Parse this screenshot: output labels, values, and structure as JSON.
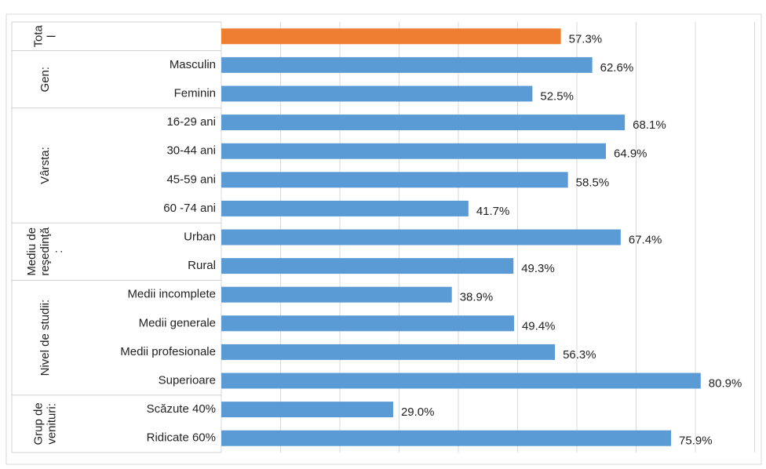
{
  "chart_data": {
    "type": "bar",
    "orientation": "horizontal",
    "xlim": [
      0,
      90
    ],
    "xticks": [
      0,
      10,
      20,
      30,
      40,
      50,
      60,
      70,
      80,
      90
    ],
    "grid": true,
    "groups": [
      {
        "label": [
          "Tota",
          "l"
        ],
        "color": "#ed7d31",
        "categories": [
          null
        ],
        "values": [
          57.3
        ],
        "value_labels": [
          "57.3%"
        ]
      },
      {
        "label": [
          "Gen:"
        ],
        "color": "#5b9bd5",
        "categories": [
          "Masculin",
          "Feminin"
        ],
        "values": [
          62.6,
          52.5
        ],
        "value_labels": [
          "62.6%",
          "52.5%"
        ]
      },
      {
        "label": [
          "Vârsta:"
        ],
        "color": "#5b9bd5",
        "categories": [
          "16-29 ani",
          "30-44 ani",
          "45-59 ani",
          "60 -74 ani"
        ],
        "values": [
          68.1,
          64.9,
          58.5,
          41.7
        ],
        "value_labels": [
          "68.1%",
          "64.9%",
          "58.5%",
          "41.7%"
        ]
      },
      {
        "label": [
          "Mediu de",
          "reşedinţă",
          ":"
        ],
        "color": "#5b9bd5",
        "categories": [
          "Urban",
          "Rural"
        ],
        "values": [
          67.4,
          49.3
        ],
        "value_labels": [
          "67.4%",
          "49.3%"
        ]
      },
      {
        "label": [
          "Nivel de studii:"
        ],
        "color": "#5b9bd5",
        "categories": [
          "Medii incomplete",
          "Medii generale",
          "Medii profesionale",
          "Superioare"
        ],
        "values": [
          38.9,
          49.4,
          56.3,
          80.9
        ],
        "value_labels": [
          "38.9%",
          "49.4%",
          "56.3%",
          "80.9%"
        ]
      },
      {
        "label": [
          "Grup de",
          "venituri:"
        ],
        "color": "#5b9bd5",
        "categories": [
          "Scăzute 40%",
          "Ridicate 60%"
        ],
        "values": [
          29.0,
          75.9
        ],
        "value_labels": [
          "29.0%",
          "75.9%"
        ]
      }
    ]
  }
}
